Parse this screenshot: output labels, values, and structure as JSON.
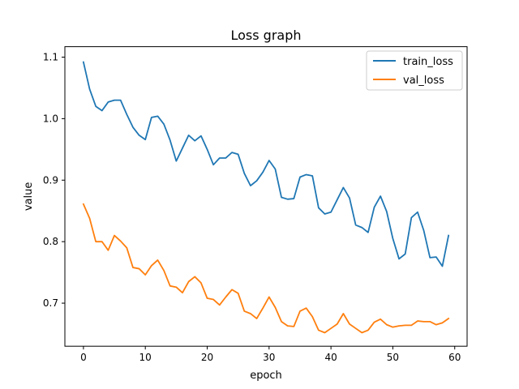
{
  "chart_data": {
    "type": "line",
    "title": "Loss graph",
    "xlabel": "epoch",
    "ylabel": "value",
    "xlim": [
      -3,
      62
    ],
    "ylim": [
      0.63,
      1.117
    ],
    "x_ticks": [
      0,
      10,
      20,
      30,
      40,
      50,
      60
    ],
    "y_ticks": [
      0.7,
      0.8,
      0.9,
      1.0,
      1.1
    ],
    "y_tick_labels": [
      "0.7",
      "0.8",
      "0.9",
      "1.0",
      "1.1"
    ],
    "grid": false,
    "legend_position": "top-right",
    "x": [
      0,
      1,
      2,
      3,
      4,
      5,
      6,
      7,
      8,
      9,
      10,
      11,
      12,
      13,
      14,
      15,
      16,
      17,
      18,
      19,
      20,
      21,
      22,
      23,
      24,
      25,
      26,
      27,
      28,
      29,
      30,
      31,
      32,
      33,
      34,
      35,
      36,
      37,
      38,
      39,
      40,
      41,
      42,
      43,
      44,
      45,
      46,
      47,
      48,
      49,
      50,
      51,
      52,
      53,
      54,
      55,
      56,
      57,
      58,
      59
    ],
    "series": [
      {
        "name": "train_loss",
        "color": "#1f77b4",
        "values": [
          1.092,
          1.048,
          1.02,
          1.013,
          1.027,
          1.03,
          1.03,
          1.007,
          0.986,
          0.973,
          0.966,
          1.002,
          1.004,
          0.991,
          0.965,
          0.931,
          0.952,
          0.973,
          0.964,
          0.972,
          0.95,
          0.925,
          0.936,
          0.936,
          0.945,
          0.942,
          0.911,
          0.891,
          0.899,
          0.913,
          0.932,
          0.918,
          0.872,
          0.869,
          0.87,
          0.905,
          0.909,
          0.907,
          0.855,
          0.845,
          0.848,
          0.868,
          0.888,
          0.871,
          0.827,
          0.823,
          0.815,
          0.856,
          0.874,
          0.849,
          0.805,
          0.772,
          0.78,
          0.839,
          0.848,
          0.818,
          0.774,
          0.775,
          0.76,
          0.81
        ]
      },
      {
        "name": "val_loss",
        "color": "#ff7f0e",
        "values": [
          0.861,
          0.838,
          0.8,
          0.8,
          0.786,
          0.81,
          0.801,
          0.79,
          0.758,
          0.756,
          0.746,
          0.761,
          0.77,
          0.753,
          0.728,
          0.726,
          0.717,
          0.735,
          0.743,
          0.733,
          0.708,
          0.706,
          0.697,
          0.71,
          0.722,
          0.716,
          0.687,
          0.683,
          0.675,
          0.692,
          0.71,
          0.693,
          0.67,
          0.663,
          0.662,
          0.687,
          0.692,
          0.678,
          0.656,
          0.652,
          0.659,
          0.666,
          0.683,
          0.666,
          0.659,
          0.652,
          0.656,
          0.669,
          0.674,
          0.665,
          0.661,
          0.663,
          0.664,
          0.664,
          0.671,
          0.67,
          0.67,
          0.665,
          0.668,
          0.675
        ]
      }
    ]
  }
}
